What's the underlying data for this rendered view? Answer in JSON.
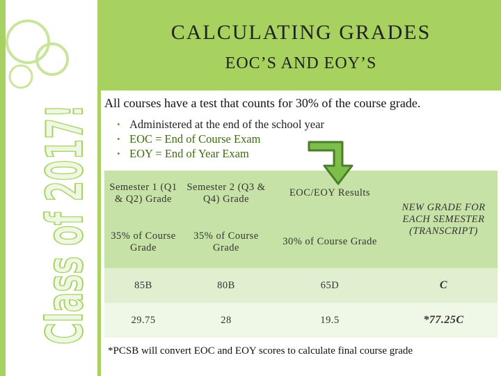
{
  "sidebar": {
    "text": "Class of 2017!"
  },
  "header": {
    "title": "CALCULATING GRADES",
    "subtitle": "EOC’S AND EOY’S"
  },
  "body": {
    "intro": "All courses have a test that counts for 30% of the course grade.",
    "bullets": [
      "Administered at the end of the school year",
      "EOC = End of Course Exam",
      "EOY = End of Year Exam"
    ]
  },
  "table": {
    "rows": [
      [
        "Semester 1 (Q1 & Q2) Grade",
        "Semester 2 (Q3 & Q4) Grade",
        "EOC/EOY Results",
        "NEW GRADE FOR EACH SEMESTER (TRANSCRIPT)"
      ],
      [
        "35% of Course Grade",
        "35% of Course Grade",
        "30% of Course Grade"
      ],
      [
        "85B",
        "80B",
        "65D",
        "C"
      ],
      [
        "29.75",
        "28",
        "19.5",
        "*77.25C"
      ]
    ]
  },
  "footnote": "*PCSB will convert EOC and EOY scores to calculate final course grade"
}
